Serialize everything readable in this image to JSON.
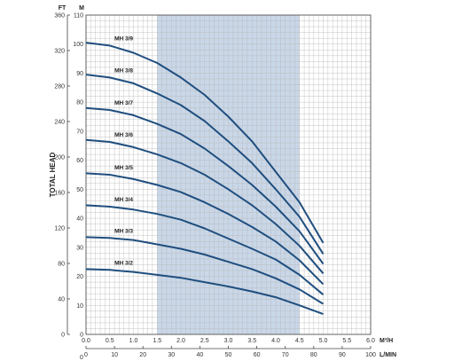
{
  "chart_data": {
    "type": "line",
    "ylabel": "TOTAL HEAD",
    "unit_left": "FT",
    "unit_right_top": "M",
    "x_unit": "M³/H",
    "x2_unit": "L/MIN",
    "bottom_left_label": "0",
    "x_ticks": [
      "0.0",
      "0.5",
      "1.0",
      "1.5",
      "2.0",
      "2.5",
      "3.0",
      "3.5",
      "4.0",
      "4.5",
      "5.0",
      "5.5",
      "6.0"
    ],
    "x_range": [
      0,
      6
    ],
    "x2_ticks": [
      "0",
      "10",
      "20",
      "30",
      "40",
      "50",
      "60",
      "70",
      "80",
      "90",
      "100"
    ],
    "x2_range": [
      0,
      100
    ],
    "y_m_ticks": [
      "0",
      "10",
      "20",
      "30",
      "40",
      "50",
      "60",
      "70",
      "80",
      "90",
      "100",
      "110"
    ],
    "y_m_range": [
      0,
      110
    ],
    "y_ft_ticks": [
      "0",
      "40",
      "80",
      "120",
      "160",
      "200",
      "240",
      "280",
      "320",
      "360"
    ],
    "y_ft_range": [
      0,
      360
    ],
    "highlight_x_range": [
      1.5,
      4.5
    ],
    "grid": true,
    "colors": {
      "curve": "#1f4e7f",
      "highlight": "#c9d7e8",
      "grid": "#b8b8b8",
      "axis": "#444444"
    },
    "x": [
      0,
      0.5,
      1.0,
      1.5,
      2.0,
      2.5,
      3.0,
      3.5,
      4.0,
      4.5,
      5.0
    ],
    "series": [
      {
        "name": "MH 3/2",
        "values": [
          22.5,
          22.2,
          21.5,
          20.5,
          19.5,
          18.0,
          16.5,
          14.8,
          12.8,
          10.0,
          7.0
        ]
      },
      {
        "name": "MH 3/3",
        "values": [
          33.5,
          33.2,
          32.5,
          31.0,
          29.5,
          27.5,
          25.0,
          22.5,
          19.3,
          15.5,
          10.5
        ]
      },
      {
        "name": "MH 3/4",
        "values": [
          44.5,
          44.0,
          43.0,
          41.5,
          39.5,
          36.5,
          33.0,
          29.5,
          25.8,
          20.5,
          13.7
        ]
      },
      {
        "name": "MH 3/5",
        "values": [
          55.5,
          55.0,
          53.5,
          51.5,
          49.0,
          45.5,
          41.5,
          37.0,
          32.0,
          25.5,
          17.3
        ]
      },
      {
        "name": "MH 3/6",
        "values": [
          67.0,
          66.3,
          64.5,
          62.0,
          59.0,
          55.0,
          50.0,
          44.5,
          38.0,
          30.5,
          21.0
        ]
      },
      {
        "name": "MH 3/7",
        "values": [
          78.0,
          77.3,
          75.5,
          72.5,
          69.0,
          64.0,
          58.0,
          51.5,
          44.0,
          35.5,
          24.3
        ]
      },
      {
        "name": "MH 3/8",
        "values": [
          89.5,
          88.5,
          86.5,
          83.0,
          79.0,
          73.5,
          66.5,
          59.0,
          50.0,
          40.5,
          27.7
        ]
      },
      {
        "name": "MH 3/9",
        "values": [
          100.5,
          99.5,
          97.0,
          93.5,
          88.5,
          82.5,
          75.0,
          66.5,
          56.0,
          45.5,
          31.5
        ]
      }
    ]
  }
}
